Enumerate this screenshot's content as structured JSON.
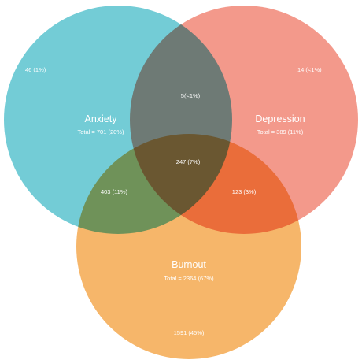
{
  "sets": [
    {
      "key": "anxiety",
      "name": "Anxiety",
      "total": "Total = 701 (20%)",
      "exclusive": "46 (1%)",
      "color": "#73CCD6"
    },
    {
      "key": "depression",
      "name": "Depression",
      "total": "Total = 389 (11%)",
      "exclusive": "14 (<1%)",
      "color": "#F3998B"
    },
    {
      "key": "burnout",
      "name": "Burnout",
      "total": "Total = 2364 (67%)",
      "exclusive": "1591 (45%)",
      "color": "#F6B66A"
    }
  ],
  "overlaps": {
    "anxiety_depression": "5(<1%)",
    "anxiety_burnout": "403 (11%)",
    "depression_burnout": "123 (3%)",
    "all_three": "247 (7%)"
  }
}
